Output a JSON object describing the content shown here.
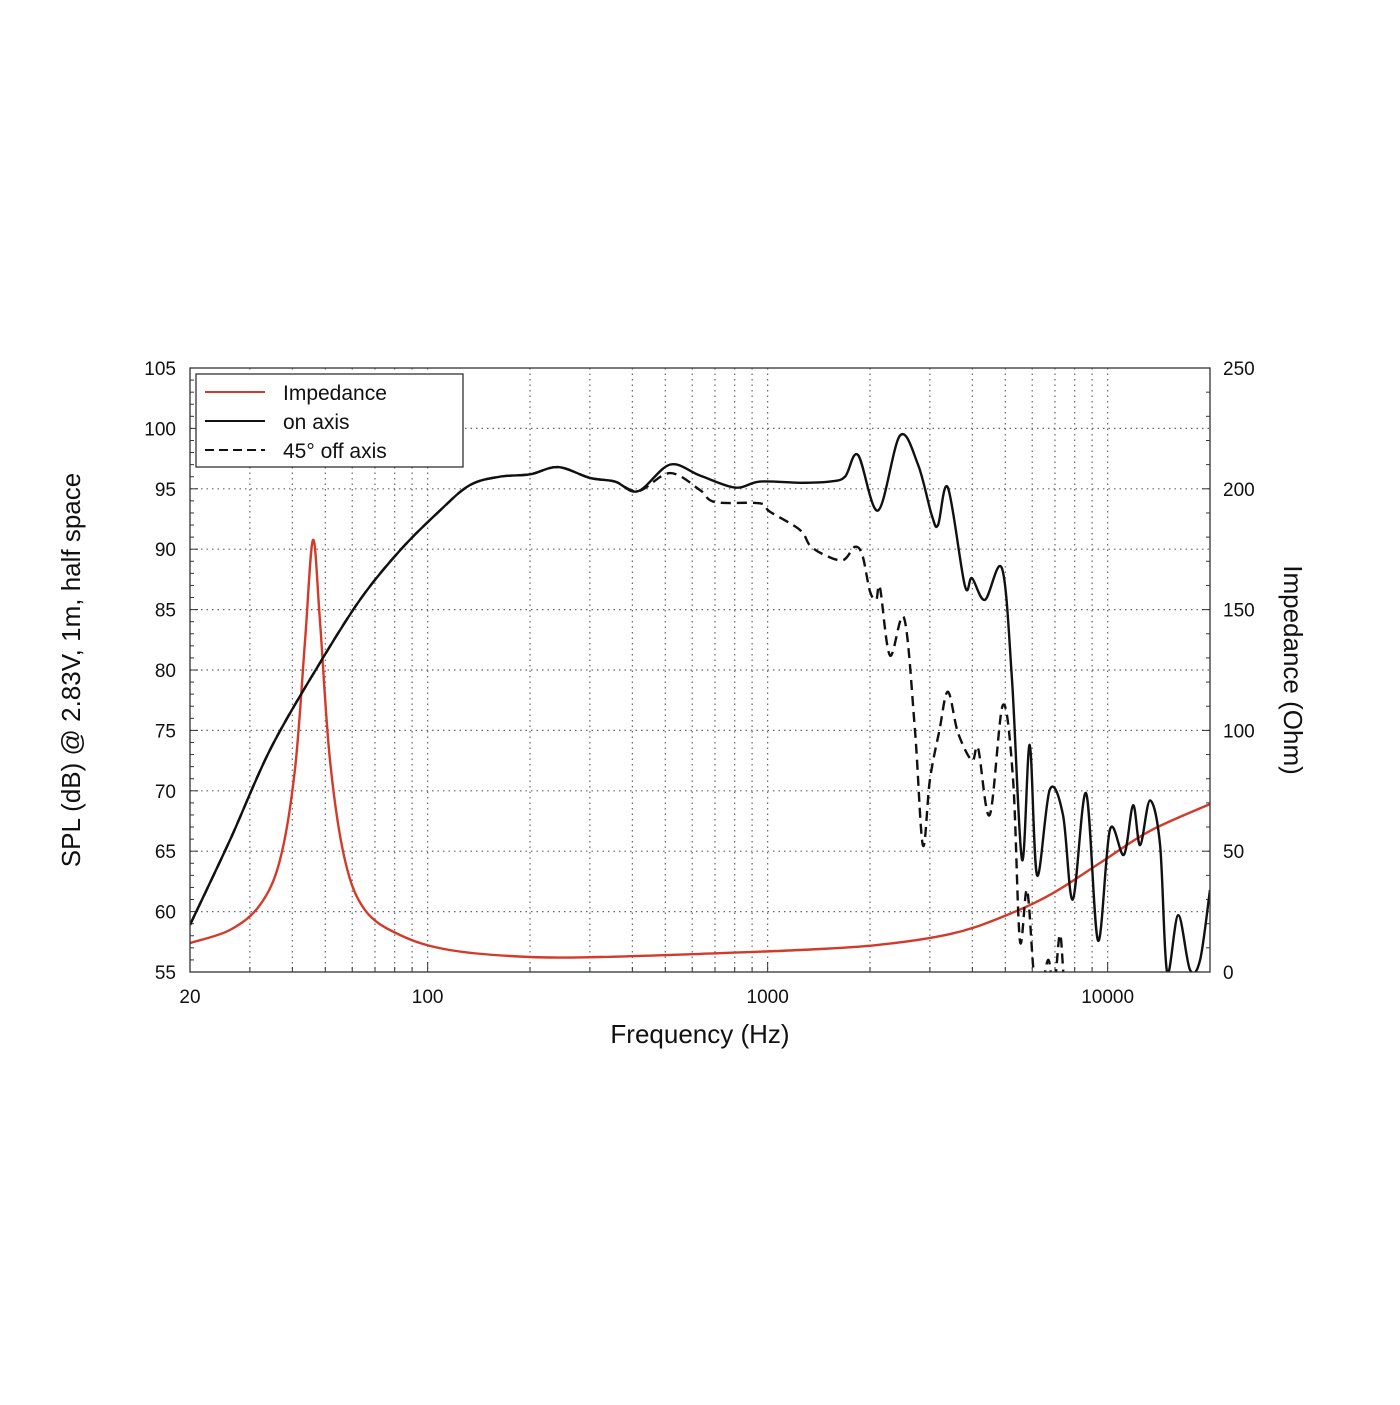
{
  "chart_data": {
    "type": "line",
    "xlabel": "Frequency (Hz)",
    "ylabel": "SPL (dB) @ 2.83V, 1m, half space",
    "y2label": "Impedance (Ohm)",
    "xscale": "log",
    "xlim": [
      20,
      20000
    ],
    "ylim": [
      55,
      105
    ],
    "y2lim": [
      0,
      250
    ],
    "grid": true,
    "legend_position": "top-left",
    "x_tick_labels": [
      "20",
      "100",
      "1000",
      "10000"
    ],
    "x_ticks": [
      20,
      100,
      1000,
      10000
    ],
    "y_tick_labels": [
      "55",
      "60",
      "65",
      "70",
      "75",
      "80",
      "85",
      "90",
      "95",
      "100",
      "105"
    ],
    "y_ticks": [
      55,
      60,
      65,
      70,
      75,
      80,
      85,
      90,
      95,
      100,
      105
    ],
    "y2_tick_labels": [
      "0",
      "50",
      "100",
      "150",
      "200",
      "250"
    ],
    "y2_ticks": [
      0,
      50,
      100,
      150,
      200,
      250
    ],
    "series": [
      {
        "name": "Impedance",
        "axis": "right",
        "color": "#d23a2a",
        "style": "solid",
        "x": [
          20,
          26.2,
          32.1,
          36.8,
          40.7,
          43.6,
          46,
          48.2,
          51.6,
          57.1,
          65.4,
          82.9,
          116,
          200,
          321,
          632,
          1244,
          2112,
          3438,
          4820,
          6760,
          9490,
          13320,
          20000
        ],
        "y": [
          12,
          17.4,
          27.7,
          46.4,
          83.6,
          137.4,
          178.8,
          145.7,
          87.7,
          46.4,
          25.7,
          15.3,
          9.1,
          6.2,
          6.2,
          7.5,
          9.1,
          11.2,
          15.7,
          22.4,
          31.9,
          45.1,
          58.4,
          69.5
        ]
      },
      {
        "name": "on axis",
        "axis": "left",
        "color": "#111111",
        "style": "solid",
        "x": [
          20,
          26.2,
          34.4,
          47.3,
          63.2,
          82.9,
          108.7,
          133,
          163,
          200,
          242,
          300,
          356,
          416,
          516,
          632,
          802,
          949,
          1244,
          1526,
          1689,
          1844,
          2112,
          2450,
          2768,
          3040,
          3170,
          3390,
          3800,
          3990,
          4356,
          4888,
          5232,
          5600,
          5900,
          6200,
          6760,
          7390,
          7900,
          8640,
          9370,
          10160,
          11160,
          11880,
          12460,
          13320,
          14260,
          14960,
          16120,
          17460,
          18700,
          20000
        ],
        "y": [
          58.9,
          65.9,
          73.4,
          80.2,
          85.8,
          89.9,
          93.2,
          95.3,
          96.0,
          96.2,
          96.8,
          95.9,
          95.6,
          94.8,
          97.0,
          96.1,
          95.1,
          95.6,
          95.5,
          95.6,
          96.0,
          97.8,
          93.2,
          99.4,
          97.0,
          92.8,
          92.0,
          95.1,
          87.0,
          87.6,
          85.8,
          88.4,
          79.2,
          64.3,
          73.8,
          63.0,
          70.1,
          68.0,
          61.0,
          69.8,
          57.6,
          66.8,
          64.7,
          68.8,
          65.5,
          69.2,
          65.5,
          55.0,
          59.7,
          55.2,
          56.0,
          61.8
        ]
      },
      {
        "name": "45° off axis",
        "axis": "left",
        "color": "#111111",
        "style": "dashed",
        "x": [
          20,
          26.2,
          34.4,
          47.3,
          63.2,
          82.9,
          108.7,
          133,
          163,
          200,
          242,
          300,
          356,
          416,
          516,
          632,
          700,
          949,
          1016,
          1244,
          1333,
          1476,
          1668,
          1806,
          1900,
          2000,
          2086,
          2140,
          2290,
          2520,
          2712,
          2862,
          3000,
          3200,
          3390,
          3630,
          3990,
          4160,
          4500,
          4920,
          5270,
          5520,
          5790,
          6060,
          6300,
          6680,
          6950,
          7240,
          7500,
          8000
        ],
        "y": [
          58.9,
          65.9,
          73.4,
          80.2,
          85.8,
          89.9,
          93.2,
          95.3,
          96.0,
          96.2,
          96.8,
          95.9,
          95.6,
          94.8,
          96.3,
          94.9,
          93.9,
          93.8,
          93.1,
          91.6,
          90.3,
          89.5,
          89.1,
          90.2,
          89.5,
          86.5,
          85.8,
          86.8,
          81.2,
          84.3,
          75.0,
          65.5,
          70.9,
          75.0,
          78.2,
          74.8,
          72.5,
          73.5,
          68.0,
          77.1,
          70.9,
          57.6,
          61.8,
          55.0,
          52.7,
          56.0,
          53.5,
          58.1,
          53.5,
          51.9
        ]
      }
    ]
  }
}
